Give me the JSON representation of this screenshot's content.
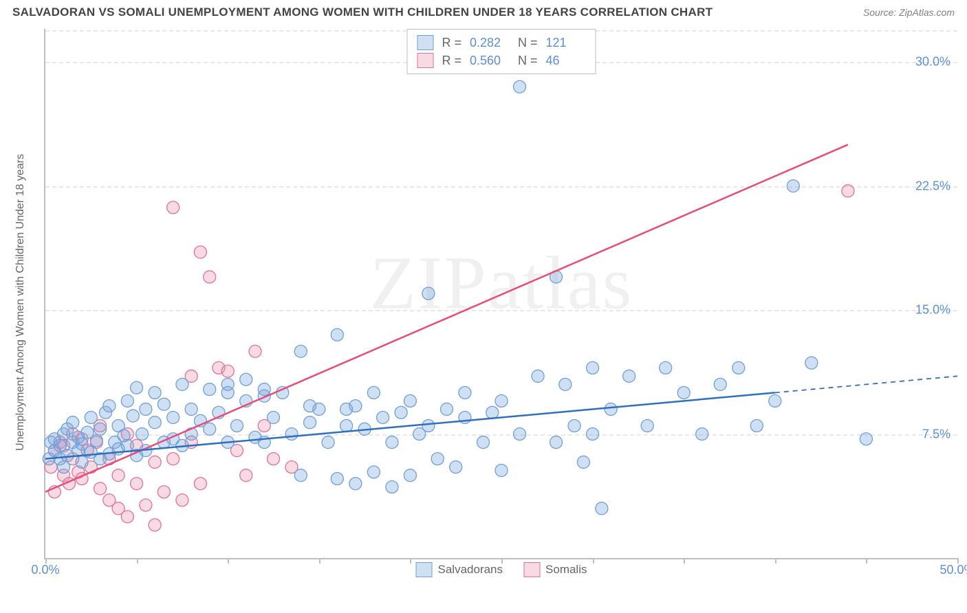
{
  "title": "SALVADORAN VS SOMALI UNEMPLOYMENT AMONG WOMEN WITH CHILDREN UNDER 18 YEARS CORRELATION CHART",
  "source": "Source: ZipAtlas.com",
  "watermark": "ZIPatlas",
  "ylabel": "Unemployment Among Women with Children Under 18 years",
  "chart": {
    "type": "scatter",
    "xlim": [
      0,
      50
    ],
    "ylim": [
      0,
      32
    ],
    "xticks": [
      0,
      5,
      10,
      15,
      20,
      25,
      30,
      35,
      40,
      45,
      50
    ],
    "xtick_labels": {
      "0": "0.0%",
      "50": "50.0%"
    },
    "yticks": [
      7.5,
      15.0,
      22.5,
      30.0
    ],
    "ytick_labels": [
      "7.5%",
      "15.0%",
      "22.5%",
      "30.0%"
    ],
    "grid_color": "#e8e8e8",
    "axis_color": "#bfbfbf",
    "label_color": "#5b8fd6",
    "background": "#ffffff",
    "marker_radius": 9,
    "marker_stroke_width": 1.3,
    "line_width": 2.5,
    "series": [
      {
        "name": "Salvadorans",
        "fill": "rgba(120,165,220,0.35)",
        "stroke": "#6f9fd8",
        "line_color": "#2f6fc0",
        "R": "0.282",
        "N": "121",
        "trend": {
          "x1": 0,
          "y1": 6.0,
          "x2": 40,
          "y2": 10.0,
          "dash_to_x": 50,
          "dash_to_y": 11.0
        },
        "points": [
          [
            0.2,
            6.0
          ],
          [
            0.3,
            7.0
          ],
          [
            0.5,
            6.5
          ],
          [
            0.5,
            7.2
          ],
          [
            0.8,
            6.0
          ],
          [
            0.8,
            6.8
          ],
          [
            1.0,
            5.5
          ],
          [
            1.0,
            7.5
          ],
          [
            1.2,
            6.2
          ],
          [
            1.2,
            7.8
          ],
          [
            1.5,
            7.0
          ],
          [
            1.5,
            8.2
          ],
          [
            1.8,
            6.5
          ],
          [
            1.8,
            7.3
          ],
          [
            2.0,
            5.8
          ],
          [
            2.0,
            6.9
          ],
          [
            2.3,
            7.6
          ],
          [
            2.5,
            6.4
          ],
          [
            2.5,
            8.5
          ],
          [
            2.8,
            7.1
          ],
          [
            3.0,
            6.0
          ],
          [
            3.0,
            7.8
          ],
          [
            3.3,
            8.8
          ],
          [
            3.5,
            6.3
          ],
          [
            3.5,
            9.2
          ],
          [
            3.8,
            7.0
          ],
          [
            4.0,
            8.0
          ],
          [
            4.0,
            6.6
          ],
          [
            4.3,
            7.4
          ],
          [
            4.5,
            9.5
          ],
          [
            4.5,
            6.8
          ],
          [
            4.8,
            8.6
          ],
          [
            5.0,
            6.2
          ],
          [
            5.0,
            10.3
          ],
          [
            5.3,
            7.5
          ],
          [
            5.5,
            9.0
          ],
          [
            5.5,
            6.5
          ],
          [
            6.0,
            8.2
          ],
          [
            6.0,
            10.0
          ],
          [
            6.5,
            7.0
          ],
          [
            6.5,
            9.3
          ],
          [
            7.0,
            8.5
          ],
          [
            7.0,
            7.2
          ],
          [
            7.5,
            10.5
          ],
          [
            7.5,
            6.8
          ],
          [
            8.0,
            9.0
          ],
          [
            8.0,
            7.5
          ],
          [
            8.5,
            8.3
          ],
          [
            9.0,
            10.2
          ],
          [
            9.0,
            7.8
          ],
          [
            9.5,
            8.8
          ],
          [
            10.0,
            10.5
          ],
          [
            10.0,
            7.0
          ],
          [
            10.5,
            8.0
          ],
          [
            11.0,
            9.5
          ],
          [
            11.0,
            10.8
          ],
          [
            11.5,
            7.3
          ],
          [
            12.0,
            9.8
          ],
          [
            12.0,
            7.0
          ],
          [
            12.5,
            8.5
          ],
          [
            13.0,
            10.0
          ],
          [
            13.5,
            7.5
          ],
          [
            14.0,
            12.5
          ],
          [
            14.0,
            5.0
          ],
          [
            14.5,
            8.2
          ],
          [
            15.0,
            9.0
          ],
          [
            15.5,
            7.0
          ],
          [
            16.0,
            13.5
          ],
          [
            16.0,
            4.8
          ],
          [
            16.5,
            8.0
          ],
          [
            17.0,
            4.5
          ],
          [
            17.0,
            9.2
          ],
          [
            17.5,
            7.8
          ],
          [
            18.0,
            5.2
          ],
          [
            18.0,
            10.0
          ],
          [
            18.5,
            8.5
          ],
          [
            19.0,
            4.3
          ],
          [
            19.0,
            7.0
          ],
          [
            19.5,
            8.8
          ],
          [
            20.0,
            9.5
          ],
          [
            20.0,
            5.0
          ],
          [
            20.5,
            7.5
          ],
          [
            21.0,
            16.0
          ],
          [
            21.0,
            8.0
          ],
          [
            21.5,
            6.0
          ],
          [
            22.0,
            9.0
          ],
          [
            22.5,
            5.5
          ],
          [
            23.0,
            8.5
          ],
          [
            23.0,
            10.0
          ],
          [
            24.0,
            7.0
          ],
          [
            24.5,
            8.8
          ],
          [
            25.0,
            9.5
          ],
          [
            25.0,
            5.3
          ],
          [
            26.0,
            28.5
          ],
          [
            26.0,
            7.5
          ],
          [
            27.0,
            11.0
          ],
          [
            28.0,
            7.0
          ],
          [
            28.0,
            17.0
          ],
          [
            28.5,
            10.5
          ],
          [
            29.0,
            8.0
          ],
          [
            29.5,
            5.8
          ],
          [
            30.0,
            11.5
          ],
          [
            30.0,
            7.5
          ],
          [
            30.5,
            3.0
          ],
          [
            31.0,
            9.0
          ],
          [
            32.0,
            11.0
          ],
          [
            33.0,
            8.0
          ],
          [
            34.0,
            11.5
          ],
          [
            35.0,
            10.0
          ],
          [
            36.0,
            7.5
          ],
          [
            37.0,
            10.5
          ],
          [
            38.0,
            11.5
          ],
          [
            39.0,
            8.0
          ],
          [
            40.0,
            9.5
          ],
          [
            41.0,
            22.5
          ],
          [
            42.0,
            11.8
          ],
          [
            45.0,
            7.2
          ],
          [
            10.0,
            10.0
          ],
          [
            12.0,
            10.2
          ],
          [
            14.5,
            9.2
          ],
          [
            16.5,
            9.0
          ]
        ]
      },
      {
        "name": "Somalis",
        "fill": "rgba(235,150,175,0.35)",
        "stroke": "#e27099",
        "line_color": "#e84d7a",
        "R": "0.560",
        "N": "46",
        "trend": {
          "x1": 0,
          "y1": 4.0,
          "x2": 44,
          "y2": 25.0
        },
        "points": [
          [
            0.3,
            5.5
          ],
          [
            0.5,
            4.0
          ],
          [
            0.5,
            6.5
          ],
          [
            0.8,
            7.0
          ],
          [
            1.0,
            5.0
          ],
          [
            1.0,
            6.8
          ],
          [
            1.3,
            4.5
          ],
          [
            1.5,
            7.5
          ],
          [
            1.5,
            6.0
          ],
          [
            1.8,
            5.2
          ],
          [
            2.0,
            7.2
          ],
          [
            2.0,
            4.8
          ],
          [
            2.3,
            6.5
          ],
          [
            2.5,
            5.5
          ],
          [
            2.8,
            7.0
          ],
          [
            3.0,
            4.2
          ],
          [
            3.0,
            8.0
          ],
          [
            3.5,
            3.5
          ],
          [
            3.5,
            6.0
          ],
          [
            4.0,
            5.0
          ],
          [
            4.0,
            3.0
          ],
          [
            4.5,
            7.5
          ],
          [
            4.5,
            2.5
          ],
          [
            5.0,
            6.8
          ],
          [
            5.0,
            4.5
          ],
          [
            5.5,
            3.2
          ],
          [
            6.0,
            2.0
          ],
          [
            6.0,
            5.8
          ],
          [
            6.5,
            4.0
          ],
          [
            7.0,
            21.2
          ],
          [
            7.0,
            6.0
          ],
          [
            7.5,
            3.5
          ],
          [
            8.0,
            7.0
          ],
          [
            8.0,
            11.0
          ],
          [
            8.5,
            18.5
          ],
          [
            8.5,
            4.5
          ],
          [
            9.0,
            17.0
          ],
          [
            9.5,
            11.5
          ],
          [
            10.0,
            11.3
          ],
          [
            10.5,
            6.5
          ],
          [
            11.0,
            5.0
          ],
          [
            11.5,
            12.5
          ],
          [
            12.0,
            8.0
          ],
          [
            12.5,
            6.0
          ],
          [
            13.5,
            5.5
          ],
          [
            44.0,
            22.2
          ]
        ]
      }
    ]
  }
}
